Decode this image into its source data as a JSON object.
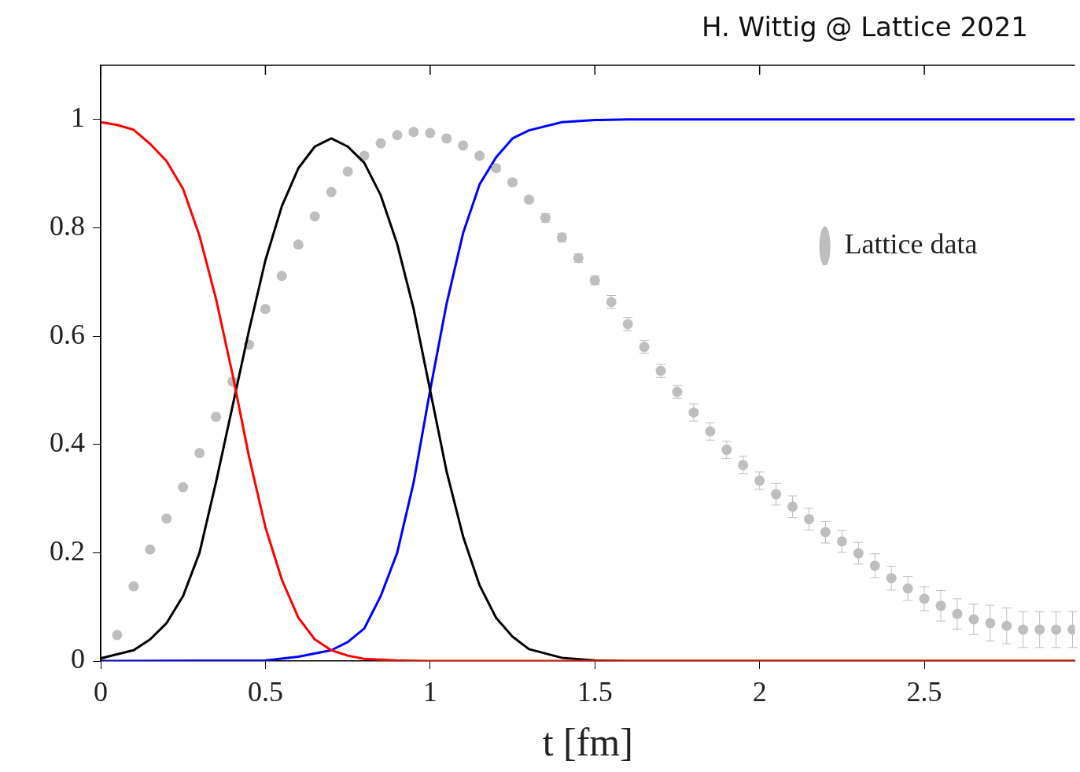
{
  "chart_data": {
    "type": "line",
    "annotations": [
      "H. Wittig @ Lattice 2021"
    ],
    "xlabel": "t [fm]",
    "xlim": [
      0,
      2.957
    ],
    "xticks": [
      0,
      0.5,
      1,
      1.5,
      2,
      2.5
    ],
    "ylim": [
      0,
      1.1
    ],
    "yticks": [
      0,
      0.2,
      0.4,
      0.6,
      0.8,
      1
    ],
    "legend": "top right",
    "series": [
      {
        "type": "line",
        "color": "#ff0000",
        "marker": "none",
        "x": [
          0,
          0.05,
          0.1,
          0.15,
          0.2,
          0.25,
          0.3,
          0.35,
          0.4,
          0.45,
          0.5,
          0.55,
          0.6,
          0.65,
          0.7,
          0.75,
          0.8,
          0.9,
          1.0,
          2.957
        ],
        "values": [
          0.995,
          0.99,
          0.981,
          0.955,
          0.923,
          0.872,
          0.785,
          0.669,
          0.53,
          0.378,
          0.247,
          0.15,
          0.08,
          0.04,
          0.02,
          0.01,
          0.004,
          0.001,
          0,
          0
        ]
      },
      {
        "type": "line",
        "color": "#000000",
        "marker": "none",
        "x": [
          0,
          0.1,
          0.15,
          0.2,
          0.25,
          0.3,
          0.35,
          0.4,
          0.45,
          0.5,
          0.55,
          0.6,
          0.65,
          0.7,
          0.75,
          0.8,
          0.85,
          0.9,
          0.95,
          1.0,
          1.05,
          1.1,
          1.15,
          1.2,
          1.25,
          1.3,
          1.4,
          1.5,
          1.6,
          2.957
        ],
        "values": [
          0.005,
          0.02,
          0.04,
          0.07,
          0.12,
          0.2,
          0.33,
          0.47,
          0.61,
          0.74,
          0.84,
          0.91,
          0.95,
          0.965,
          0.95,
          0.92,
          0.86,
          0.77,
          0.65,
          0.5,
          0.35,
          0.23,
          0.14,
          0.08,
          0.045,
          0.022,
          0.006,
          0.001,
          0,
          0
        ]
      },
      {
        "type": "line",
        "color": "#0000ff",
        "marker": "none",
        "x": [
          0,
          0.5,
          0.6,
          0.7,
          0.75,
          0.8,
          0.85,
          0.9,
          0.95,
          1.0,
          1.05,
          1.1,
          1.15,
          1.2,
          1.25,
          1.3,
          1.4,
          1.5,
          1.6,
          2.957
        ],
        "values": [
          0,
          0.001,
          0.008,
          0.02,
          0.035,
          0.06,
          0.12,
          0.2,
          0.33,
          0.5,
          0.66,
          0.79,
          0.88,
          0.93,
          0.965,
          0.98,
          0.995,
          0.999,
          1,
          1
        ]
      },
      {
        "type": "scatter",
        "name": "Lattice data",
        "color": "#bebebe",
        "marker": "circle",
        "x": [
          0,
          0.05,
          0.1,
          0.15,
          0.2,
          0.25,
          0.3,
          0.35,
          0.4,
          0.45,
          0.5,
          0.55,
          0.6,
          0.65,
          0.7,
          0.75,
          0.8,
          0.85,
          0.9,
          0.95,
          1.0,
          1.05,
          1.1,
          1.15,
          1.2,
          1.25,
          1.3,
          1.35,
          1.4,
          1.45,
          1.5,
          1.55,
          1.6,
          1.65,
          1.7,
          1.75,
          1.8,
          1.85,
          1.9,
          1.95,
          2.0,
          2.05,
          2.1,
          2.15,
          2.2,
          2.25,
          2.3,
          2.35,
          2.4,
          2.45,
          2.5,
          2.55,
          2.6,
          2.65,
          2.7,
          2.75,
          2.8,
          2.85,
          2.9,
          2.95
        ],
        "values": [
          0,
          0.048,
          0.138,
          0.206,
          0.263,
          0.321,
          0.384,
          0.451,
          0.516,
          0.584,
          0.65,
          0.711,
          0.769,
          0.821,
          0.866,
          0.904,
          0.933,
          0.956,
          0.971,
          0.977,
          0.975,
          0.965,
          0.952,
          0.933,
          0.91,
          0.884,
          0.852,
          0.818,
          0.782,
          0.744,
          0.703,
          0.663,
          0.622,
          0.58,
          0.536,
          0.497,
          0.459,
          0.424,
          0.39,
          0.362,
          0.333,
          0.308,
          0.285,
          0.262,
          0.238,
          0.221,
          0.199,
          0.176,
          0.153,
          0.134,
          0.115,
          0.102,
          0.087,
          0.077,
          0.07,
          0.065,
          0.058,
          0.058,
          0.058,
          0.058
        ],
        "errors": [
          null,
          null,
          null,
          null,
          null,
          null,
          null,
          null,
          null,
          null,
          null,
          null,
          null,
          null,
          null,
          null,
          null,
          null,
          null,
          null,
          null,
          null,
          null,
          0.005,
          0.005,
          0.005,
          0.005,
          0.008,
          0.008,
          0.008,
          0.008,
          0.012,
          0.012,
          0.012,
          0.012,
          0.012,
          0.016,
          0.016,
          0.016,
          0.016,
          0.016,
          0.02,
          0.02,
          0.02,
          0.02,
          0.02,
          0.02,
          0.022,
          0.022,
          0.022,
          0.022,
          0.028,
          0.028,
          0.028,
          0.033,
          0.033,
          0.033,
          0.033,
          0.033,
          0.033
        ]
      }
    ]
  }
}
